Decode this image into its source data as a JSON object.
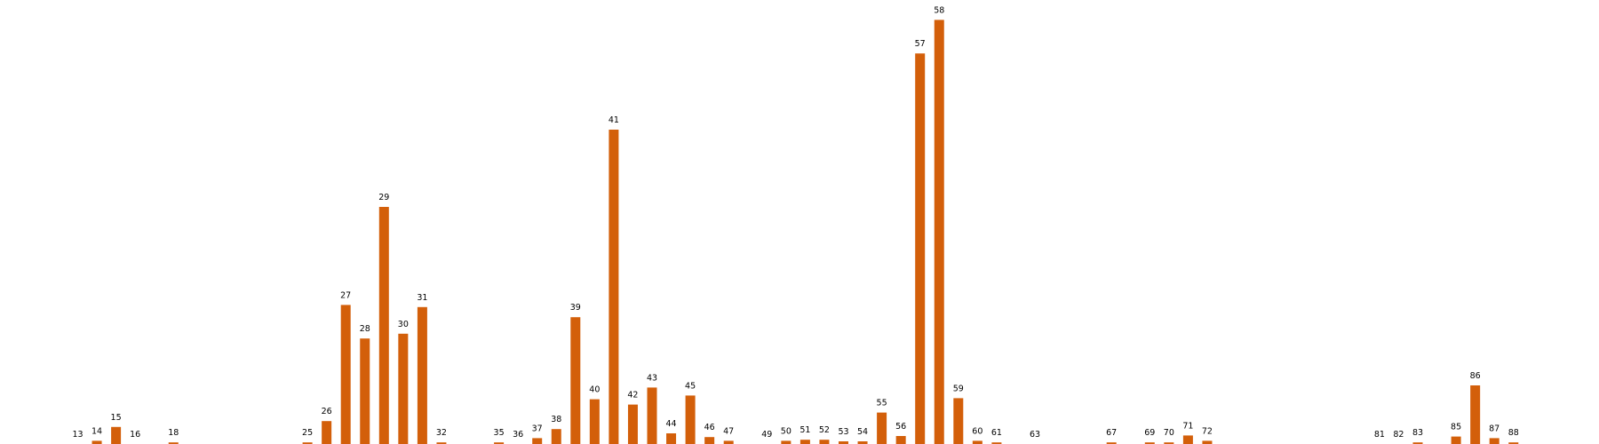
{
  "chart_data": {
    "type": "bar",
    "title": "",
    "xlabel": "",
    "ylabel": "",
    "grid": false,
    "axes_visible": false,
    "ylim": [
      0,
      100
    ],
    "bar_color": "#d35f0a",
    "categories": [
      13,
      14,
      15,
      16,
      18,
      25,
      26,
      27,
      28,
      29,
      30,
      31,
      32,
      35,
      36,
      37,
      38,
      39,
      40,
      41,
      42,
      43,
      44,
      45,
      46,
      47,
      49,
      50,
      51,
      52,
      53,
      54,
      55,
      56,
      57,
      58,
      59,
      60,
      61,
      63,
      67,
      69,
      70,
      71,
      72,
      81,
      82,
      83,
      85,
      86,
      87,
      88
    ],
    "values": [
      0,
      0.6,
      3.2,
      0,
      0.3,
      0.3,
      4.3,
      26.1,
      19.8,
      44.5,
      20.7,
      25.7,
      0.3,
      0.3,
      0,
      1.1,
      2.8,
      23.8,
      8.4,
      59,
      7.4,
      10.6,
      2,
      9.1,
      1.3,
      0.6,
      0,
      0.6,
      0.8,
      0.8,
      0.5,
      0.5,
      5.9,
      1.5,
      73.3,
      79.6,
      8.6,
      0.6,
      0.3,
      0,
      0.3,
      0.3,
      0.3,
      1.6,
      0.6,
      0,
      0,
      0.3,
      1.4,
      11,
      1.1,
      0.3
    ],
    "labels": [
      "13",
      "14",
      "15",
      "16",
      "18",
      "25",
      "26",
      "27",
      "28",
      "29",
      "30",
      "31",
      "32",
      "35",
      "36",
      "37",
      "38",
      "39",
      "40",
      "41",
      "42",
      "43",
      "44",
      "45",
      "46",
      "47",
      "49",
      "50",
      "51",
      "52",
      "53",
      "54",
      "55",
      "56",
      "57",
      "58",
      "59",
      "60",
      "61",
      "63",
      "67",
      "69",
      "70",
      "71",
      "72",
      "81",
      "82",
      "83",
      "85",
      "86",
      "87",
      "88"
    ]
  }
}
